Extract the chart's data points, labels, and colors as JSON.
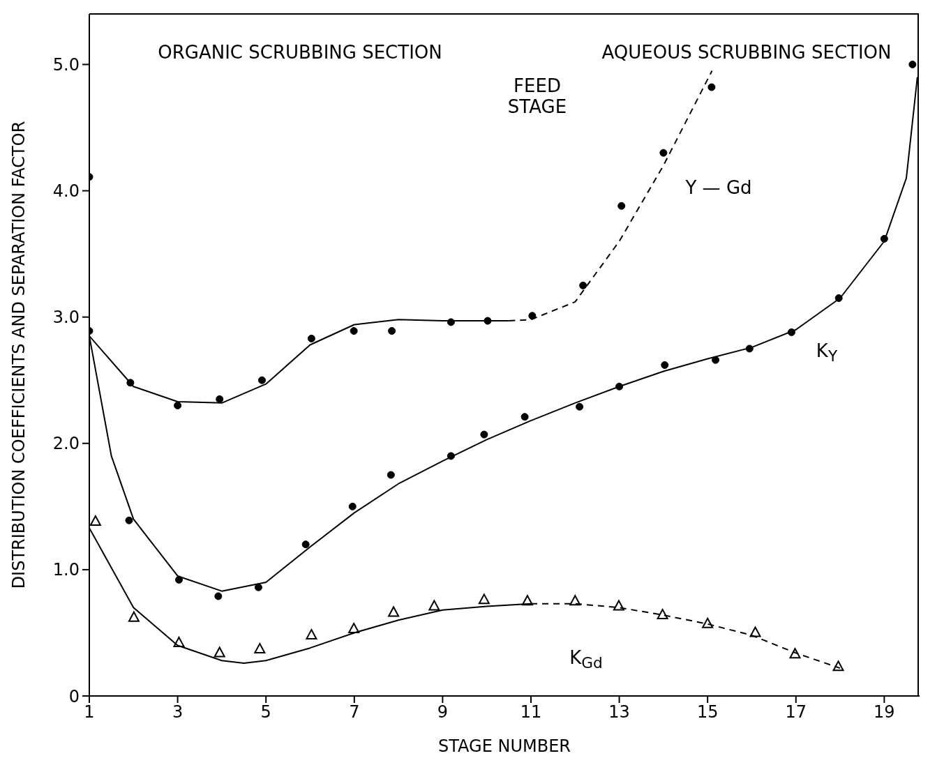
{
  "chart_data": {
    "type": "scatter",
    "xlabel": "STAGE NUMBER",
    "ylabel": "DISTRIBUTION COEFFICIENTS AND SEPARATION FACTOR",
    "xlim": [
      1,
      19.8
    ],
    "xticks": [
      1,
      3,
      5,
      7,
      9,
      11,
      13,
      15,
      17,
      19
    ],
    "ylim": [
      0,
      5.4
    ],
    "yticks": [
      0,
      {
        "value": 1,
        "label": "1.0"
      },
      {
        "value": 2,
        "label": "2.0"
      },
      {
        "value": 3,
        "label": "3.0"
      },
      {
        "value": 4,
        "label": "4.0"
      },
      {
        "value": 5,
        "label": "5.0"
      }
    ],
    "grid": false,
    "series": [
      {
        "type": "line",
        "color": "#000000",
        "marker": "none",
        "line_style": "solid",
        "x": [
          1,
          2,
          3,
          4,
          5,
          6,
          7,
          8,
          9,
          10,
          10.5
        ],
        "values": [
          2.85,
          2.45,
          2.33,
          2.32,
          2.47,
          2.78,
          2.94,
          2.98,
          2.97,
          2.97,
          2.97
        ]
      },
      {
        "type": "line",
        "color": "#000000",
        "marker": "none",
        "line_style": "dashed",
        "x": [
          10.5,
          11,
          12,
          13,
          14,
          15.1
        ],
        "values": [
          2.97,
          2.98,
          3.12,
          3.6,
          4.2,
          4.95
        ]
      },
      {
        "type": "line",
        "color": "#000000",
        "marker": "none",
        "line_style": "solid",
        "x": [
          1,
          1,
          1.5,
          2,
          3,
          4,
          5,
          6,
          7,
          8,
          9,
          10,
          11,
          12,
          13,
          14,
          15,
          16,
          17,
          18,
          19,
          19.5,
          19.75
        ],
        "values": [
          4.1,
          2.85,
          1.9,
          1.4,
          0.95,
          0.83,
          0.9,
          1.18,
          1.45,
          1.68,
          1.86,
          2.03,
          2.18,
          2.32,
          2.45,
          2.57,
          2.67,
          2.76,
          2.9,
          3.15,
          3.6,
          4.1,
          4.9
        ]
      },
      {
        "type": "line",
        "color": "#000000",
        "marker": "none",
        "line_style": "solid",
        "x": [
          1,
          2,
          3,
          4,
          4.5,
          5,
          6,
          7,
          8,
          9,
          10,
          11
        ],
        "values": [
          1.33,
          0.7,
          0.4,
          0.28,
          0.26,
          0.28,
          0.38,
          0.5,
          0.6,
          0.68,
          0.71,
          0.73
        ]
      },
      {
        "type": "line",
        "color": "#000000",
        "marker": "none",
        "line_style": "dashed",
        "x": [
          11,
          12,
          13,
          14,
          15,
          16,
          17,
          18
        ],
        "values": [
          0.73,
          0.73,
          0.7,
          0.64,
          0.57,
          0.48,
          0.34,
          0.22
        ]
      },
      {
        "color": "#000000",
        "marker": "circle",
        "x": [
          1,
          1.93,
          3,
          3.95,
          4.91,
          6.03,
          6.99,
          7.85,
          9.19,
          10.02,
          11.03,
          12.18,
          13.05,
          14,
          15.09
        ],
        "values": [
          2.89,
          2.48,
          2.3,
          2.35,
          2.5,
          2.83,
          2.89,
          2.89,
          2.96,
          2.97,
          3.01,
          3.25,
          3.88,
          4.3,
          4.82
        ]
      },
      {
        "color": "#000000",
        "marker": "circle",
        "x": [
          1,
          1.9,
          3.03,
          3.92,
          4.83,
          5.9,
          6.96,
          7.83,
          9.19,
          9.94,
          10.86,
          12.1,
          13,
          14.03,
          15.18,
          15.95,
          16.9,
          17.97,
          19,
          19.64
        ],
        "values": [
          4.11,
          1.39,
          0.92,
          0.79,
          0.86,
          1.2,
          1.5,
          1.75,
          1.9,
          2.07,
          2.21,
          2.29,
          2.45,
          2.62,
          2.66,
          2.75,
          2.88,
          3.15,
          3.62,
          5
        ]
      },
      {
        "color": "#000000",
        "marker": "triangle",
        "x": [
          1.14,
          2.01,
          3.03,
          3.95,
          4.86,
          6.03,
          6.99,
          7.89,
          8.81,
          9.94,
          10.92,
          12,
          12.99,
          13.98,
          15,
          16.08,
          16.98,
          17.96
        ],
        "values": [
          1.38,
          0.62,
          0.42,
          0.34,
          0.37,
          0.48,
          0.53,
          0.66,
          0.71,
          0.76,
          0.75,
          0.75,
          0.71,
          0.64,
          0.57,
          0.5,
          0.33,
          0.23
        ]
      }
    ],
    "annotations": [
      "ORGANIC SCRUBBING SECTION",
      "AQUEOUS SCRUBBING SECTION",
      "FEED STAGE",
      "Y — Gd",
      "K$_{Y}$",
      "K$_{Gd}$"
    ]
  }
}
